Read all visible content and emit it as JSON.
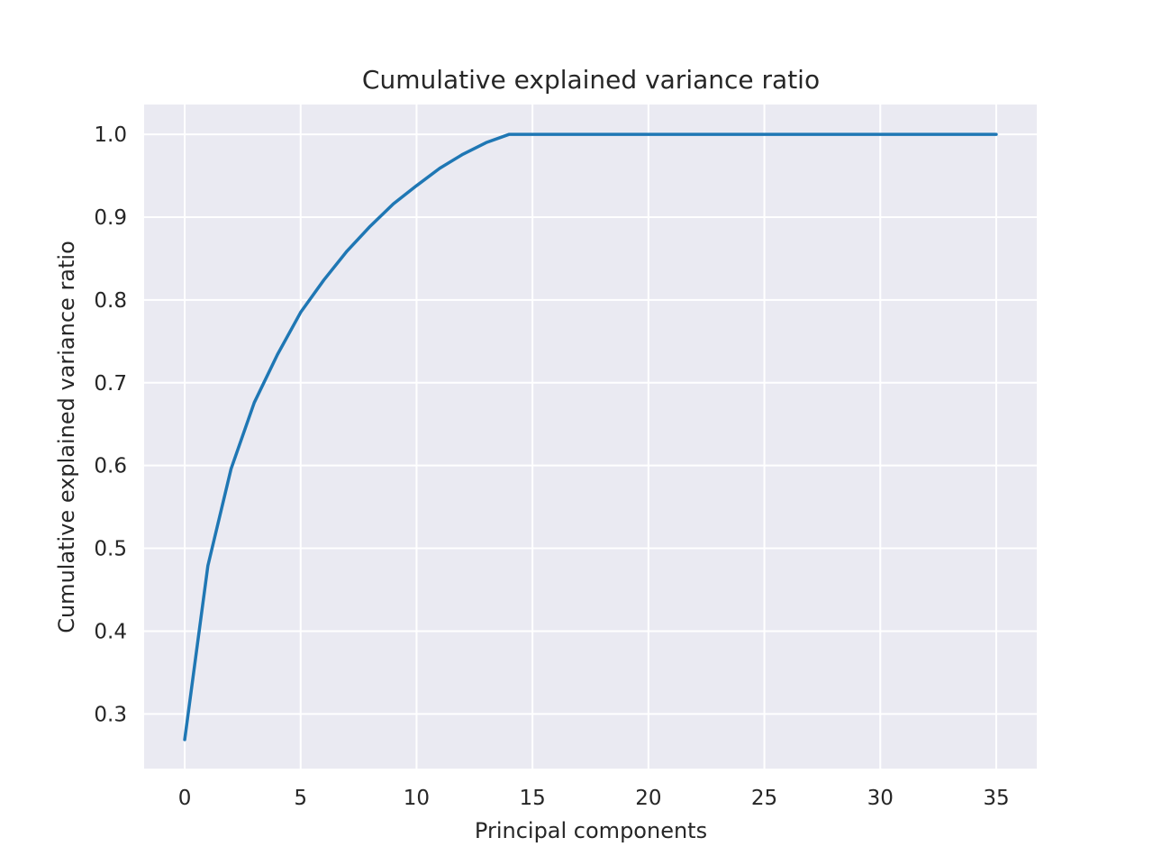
{
  "chart_data": {
    "type": "line",
    "title": "Cumulative explained variance ratio",
    "xlabel": "Principal components",
    "ylabel": "Cumulative explained variance ratio",
    "xlim": [
      -1.75,
      36.75
    ],
    "ylim": [
      0.234,
      1.036
    ],
    "xticks": [
      0,
      5,
      10,
      15,
      20,
      25,
      30,
      35
    ],
    "yticks": [
      0.3,
      0.4,
      0.5,
      0.6,
      0.7,
      0.8,
      0.9,
      1.0
    ],
    "ytick_labels": [
      "0.3",
      "0.4",
      "0.5",
      "0.6",
      "0.7",
      "0.8",
      "0.9",
      "1.0"
    ],
    "grid": true,
    "background": "#eaeaf2",
    "series": [
      {
        "color": "#1f77b4",
        "x": [
          0,
          1,
          2,
          3,
          4,
          5,
          6,
          7,
          8,
          9,
          10,
          11,
          12,
          13,
          14,
          15,
          16,
          17,
          18,
          19,
          20,
          21,
          22,
          23,
          24,
          25,
          26,
          27,
          28,
          29,
          30,
          31,
          32,
          33,
          34,
          35
        ],
        "values": [
          0.269,
          0.479,
          0.596,
          0.676,
          0.734,
          0.785,
          0.824,
          0.859,
          0.889,
          0.916,
          0.938,
          0.959,
          0.976,
          0.99,
          1.0,
          1.0,
          1.0,
          1.0,
          1.0,
          1.0,
          1.0,
          1.0,
          1.0,
          1.0,
          1.0,
          1.0,
          1.0,
          1.0,
          1.0,
          1.0,
          1.0,
          1.0,
          1.0,
          1.0,
          1.0,
          1.0
        ]
      }
    ]
  }
}
